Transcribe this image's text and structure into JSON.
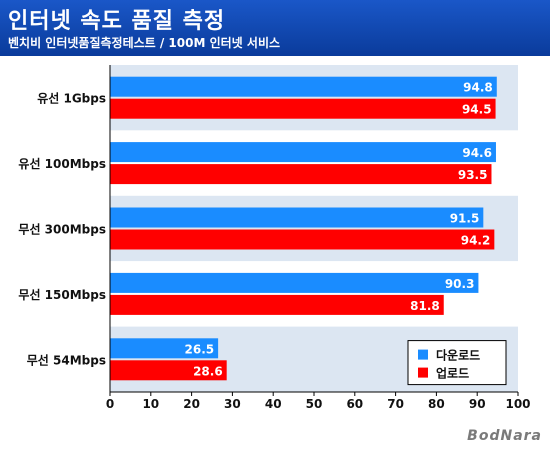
{
  "header": {
    "title": "인터넷 속도 품질 측정",
    "subtitle": "벤치비 인터넷품질측정테스트 / 100M 인터넷 서비스"
  },
  "chart_data": {
    "type": "bar",
    "orientation": "horizontal",
    "categories": [
      "유선 1Gbps",
      "유선 100Mbps",
      "무선 300Mbps",
      "무선 150Mbps",
      "무선 54Mbps"
    ],
    "series": [
      {
        "name": "다운로드",
        "color": "#1a8cff",
        "values": [
          94.8,
          94.6,
          91.5,
          90.3,
          26.5
        ]
      },
      {
        "name": "업로드",
        "color": "#ff0000",
        "values": [
          94.5,
          93.5,
          94.2,
          81.8,
          28.6
        ]
      }
    ],
    "xlim": [
      0,
      100
    ],
    "xticks": [
      0,
      10,
      20,
      30,
      40,
      50,
      60,
      70,
      80,
      90,
      100
    ],
    "legend_position": "bottom-right",
    "band_colors": [
      "#dce6f2",
      "#ffffff"
    ],
    "grid": false
  },
  "watermark": "BodNara"
}
